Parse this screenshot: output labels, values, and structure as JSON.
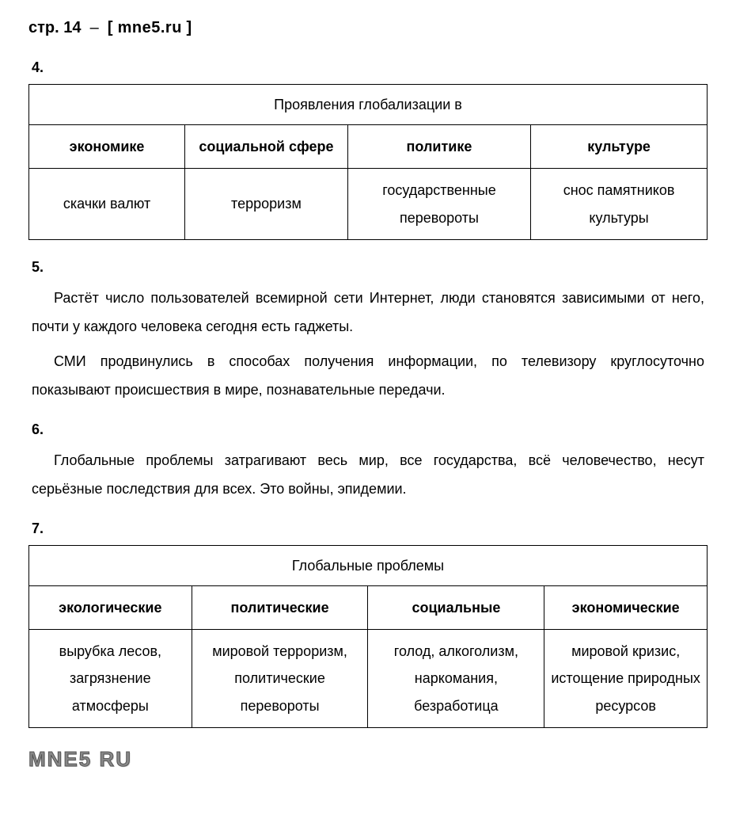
{
  "header": {
    "page_prefix": "стр.",
    "page_number": "14",
    "separator": "–",
    "site_open": "[",
    "site": "mne5.ru",
    "site_close": "]"
  },
  "section4": {
    "number": "4.",
    "table": {
      "title": "Проявления глобализации в",
      "headers": [
        "экономике",
        "социальной сфере",
        "политике",
        "культуре"
      ],
      "row": [
        "скачки валют",
        "терроризм",
        "государственные перевороты",
        "снос памятников культуры"
      ],
      "col_widths": [
        "23%",
        "24%",
        "27%",
        "26%"
      ]
    }
  },
  "section5": {
    "number": "5.",
    "paragraphs": [
      "Растёт число пользователей всемирной сети Интернет, люди становятся зависимыми от него, почти у каждого человека сегодня есть гаджеты.",
      "СМИ продвинулись в способах получения информации, по телевизору круглосуточно показывают происшествия в мире, познавательные передачи."
    ]
  },
  "section6": {
    "number": "6.",
    "paragraphs": [
      "Глобальные проблемы затрагивают весь мир, все государства, всё человечество, несут серьёзные последствия для всех. Это войны, эпидемии."
    ]
  },
  "section7": {
    "number": "7.",
    "table": {
      "title": "Глобальные проблемы",
      "headers": [
        "экологические",
        "политические",
        "социальные",
        "экономические"
      ],
      "row": [
        "вырубка лесов, загрязнение атмосферы",
        "мировой терроризм, политические перевороты",
        "голод, алкоголизм, наркомания, безработица",
        "мировой кризис, истощение природных ресурсов"
      ],
      "col_widths": [
        "24%",
        "26%",
        "26%",
        "24%"
      ]
    }
  },
  "footer": {
    "logo": "MNE5 RU"
  },
  "styles": {
    "background_color": "#ffffff",
    "text_color": "#000000",
    "border_color": "#000000",
    "body_font_size": 18,
    "header_font_size": 20,
    "footer_color": "#888888"
  }
}
